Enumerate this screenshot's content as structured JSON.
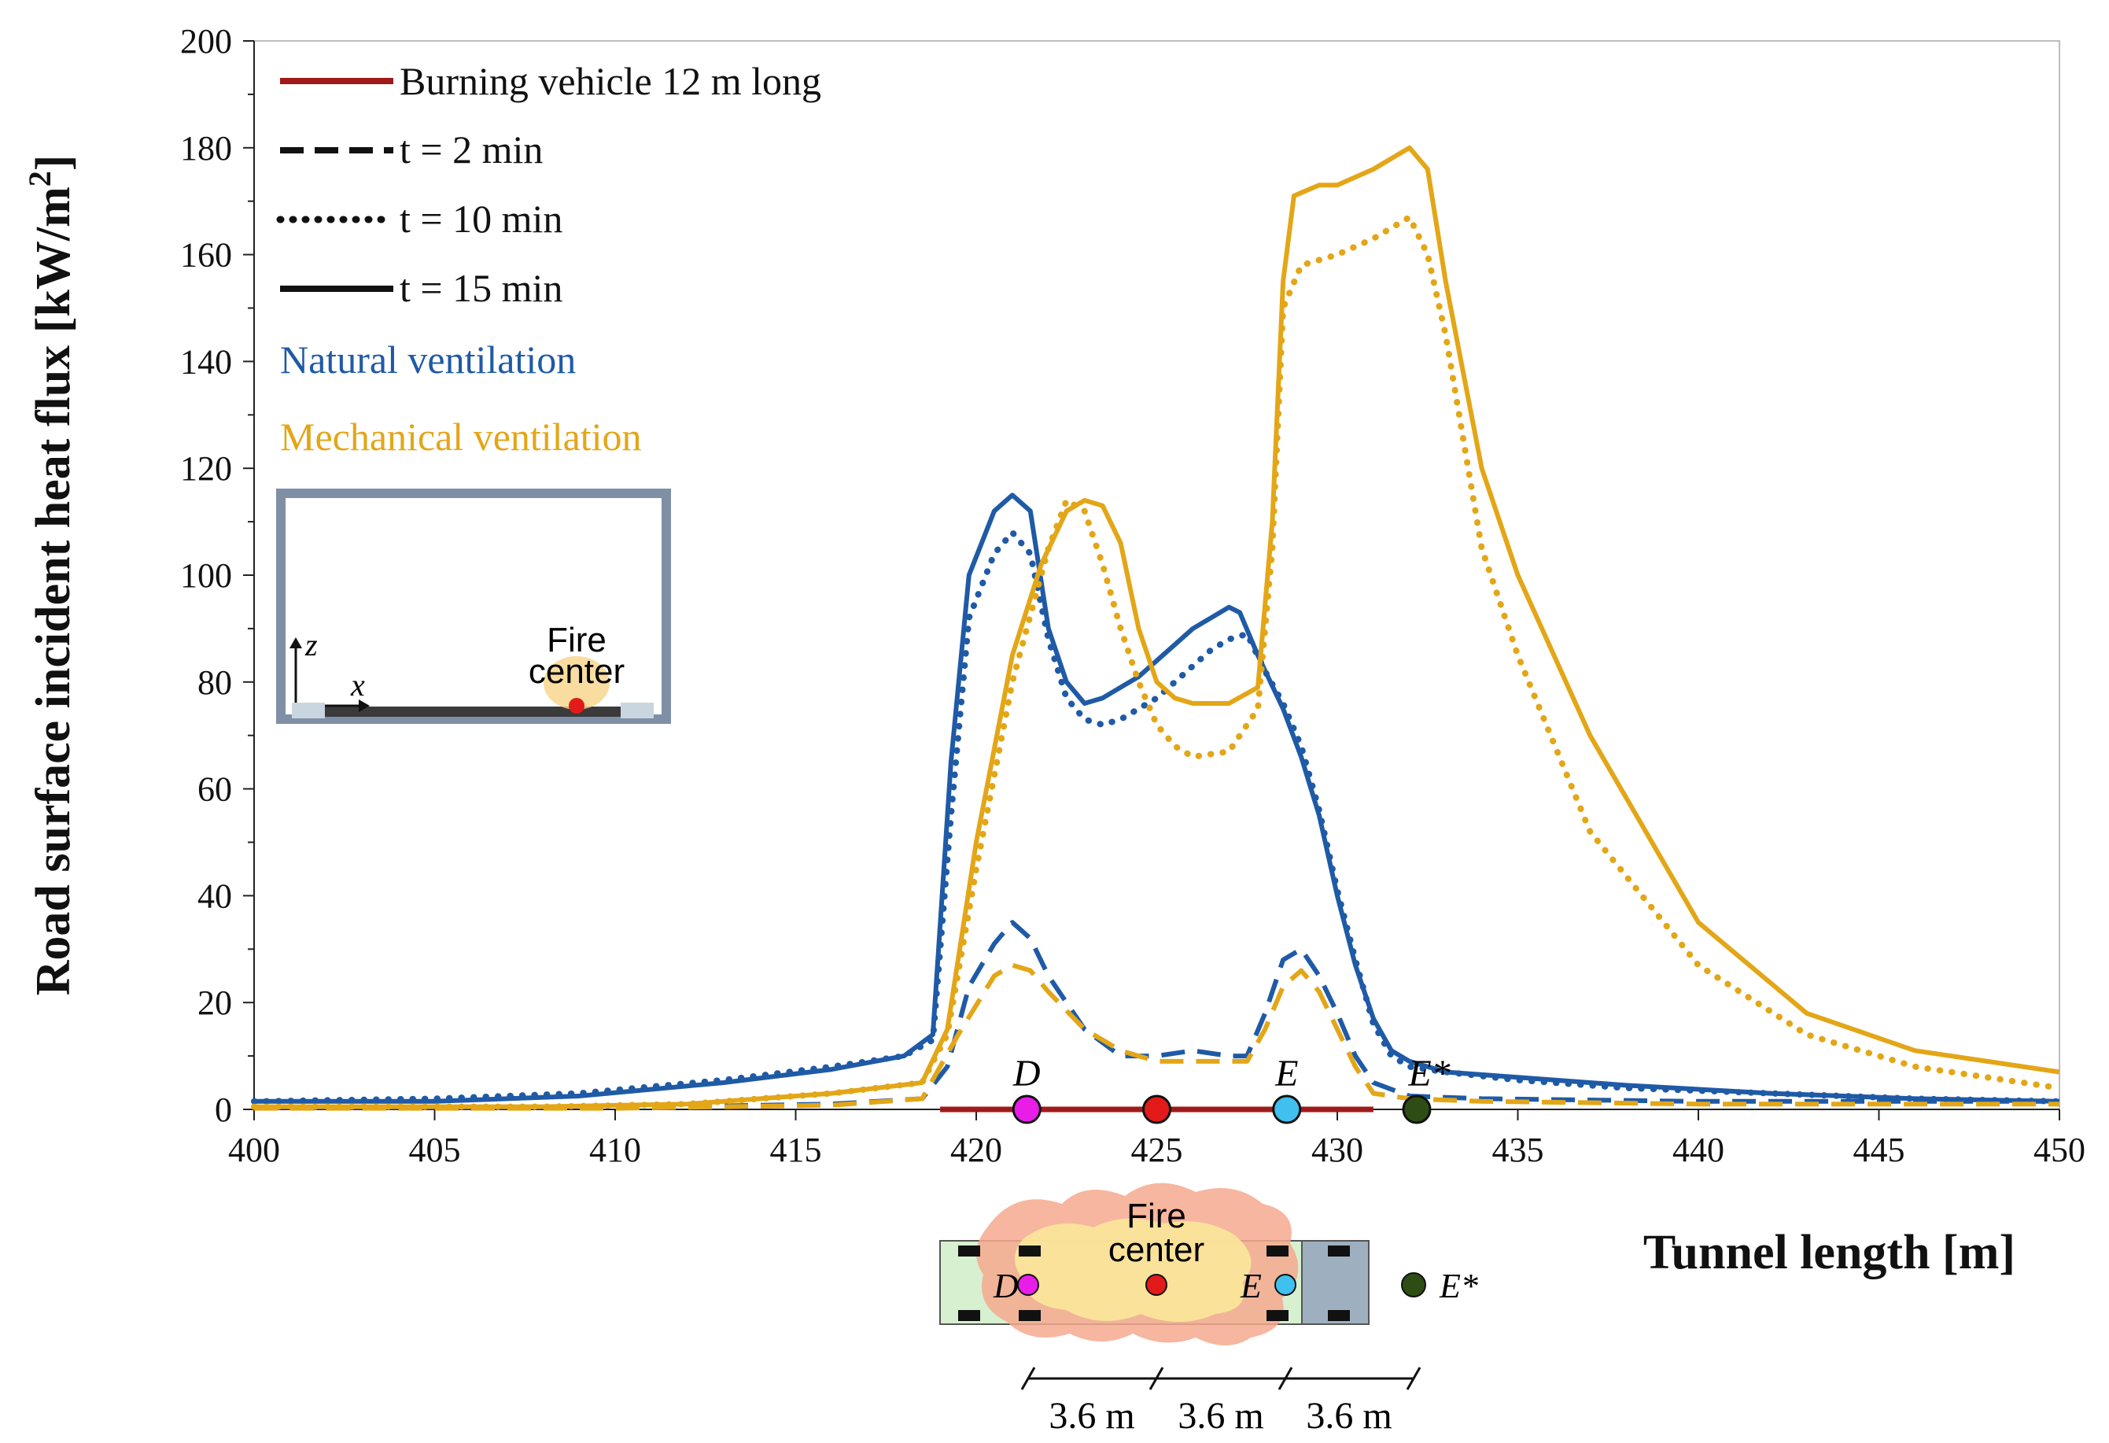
{
  "chart_data": {
    "type": "line",
    "title": "",
    "xlabel": "Tunnel length [m]",
    "ylabel": "Road surface incident heat flux [kW/m²]",
    "ylabel_main": "Road surface incident heat flux [kW/m",
    "ylabel_sup": "2",
    "ylabel_end": "]",
    "xlim": [
      400,
      450
    ],
    "ylim": [
      0,
      200
    ],
    "xticks": [
      400,
      405,
      410,
      415,
      420,
      425,
      430,
      435,
      440,
      445,
      450
    ],
    "yticks": [
      0,
      20,
      40,
      60,
      80,
      100,
      120,
      140,
      160,
      180,
      200
    ],
    "xtick_labels": [
      "400",
      "405",
      "410",
      "415",
      "420",
      "425",
      "430",
      "435",
      "440",
      "445",
      "450"
    ],
    "ytick_labels": [
      "0",
      "20",
      "40",
      "60",
      "80",
      "100",
      "120",
      "140",
      "160",
      "180",
      "200"
    ],
    "colors": {
      "natural": "#1f5aa6",
      "mechanical": "#e3a617",
      "vehicle": "#a01a1a",
      "D": "#e81ee8",
      "fire": "#e21a1a",
      "E": "#3fc0ee",
      "Estar": "#2e4d14"
    },
    "legend": {
      "vehicle": "Burning vehicle 12 m long",
      "t2": "t = 2 min",
      "t10": "t = 10 min",
      "t15": "t = 15 min",
      "natural": "Natural ventilation",
      "mechanical": "Mechanical ventilation"
    },
    "vehicle_span": [
      419,
      431
    ],
    "markers": [
      {
        "label": "D",
        "x": 421.4,
        "color_key": "D"
      },
      {
        "label": "",
        "x": 425,
        "color_key": "fire"
      },
      {
        "label": "E",
        "x": 428.6,
        "color_key": "E"
      },
      {
        "label": "E*",
        "x": 432.2,
        "color_key": "Estar"
      }
    ],
    "series": [
      {
        "name": "Natural ventilation, t = 15 min",
        "ventilation": "natural",
        "style": "solid",
        "x": [
          400,
          405,
          409,
          413,
          416,
          418,
          418.8,
          419.3,
          419.8,
          420.5,
          421,
          421.5,
          422,
          422.5,
          423,
          423.5,
          424,
          424.5,
          425,
          425.5,
          426,
          426.5,
          427,
          427.3,
          427.8,
          428.5,
          429,
          429.5,
          430,
          430.5,
          431,
          431.5,
          432,
          433,
          435,
          438,
          442,
          446,
          450
        ],
        "values": [
          1.5,
          1.5,
          2.5,
          5,
          7.5,
          10,
          14,
          65,
          100,
          112,
          115,
          112,
          90,
          80,
          76,
          77,
          79,
          81,
          84,
          87,
          90,
          92,
          94,
          93,
          85,
          75,
          66,
          55,
          40,
          27,
          17,
          11,
          9,
          7,
          6,
          4.5,
          3,
          2,
          1.5
        ]
      },
      {
        "name": "Natural ventilation, t = 10 min",
        "ventilation": "natural",
        "style": "dotted",
        "x": [
          400,
          405,
          409,
          413,
          416,
          418,
          418.8,
          419.3,
          419.8,
          420.5,
          421,
          421.5,
          422,
          422.5,
          423,
          423.5,
          424,
          424.5,
          425,
          425.5,
          426,
          426.5,
          427,
          427.5,
          428,
          428.5,
          429,
          429.5,
          430,
          430.5,
          431,
          431.5,
          432,
          433,
          435,
          438,
          442,
          446,
          450
        ],
        "values": [
          1.5,
          2,
          3,
          5.5,
          8,
          10,
          13,
          55,
          92,
          104,
          108,
          104,
          88,
          77,
          73,
          72,
          73,
          75,
          77,
          80,
          83,
          86,
          88,
          89,
          82,
          76,
          68,
          56,
          41,
          28,
          16,
          10,
          8,
          7,
          5.5,
          4,
          3,
          2,
          1.5
        ]
      },
      {
        "name": "Natural ventilation, t = 2 min",
        "ventilation": "natural",
        "style": "dashed",
        "x": [
          400,
          410,
          416,
          418.5,
          419.2,
          419.8,
          420.5,
          421,
          421.5,
          422,
          423,
          424,
          425,
          426,
          427,
          427.5,
          428,
          428.5,
          429,
          429.5,
          430,
          430.5,
          431,
          432,
          434,
          440,
          445,
          450
        ],
        "values": [
          0.3,
          0.3,
          1,
          2,
          8,
          23,
          31,
          35,
          32,
          25,
          15,
          10,
          10,
          11,
          10,
          10,
          18,
          28,
          30,
          25,
          18,
          10,
          5,
          2.5,
          2,
          1.5,
          1.5,
          1.5
        ]
      },
      {
        "name": "Mechanical ventilation, t = 15 min",
        "ventilation": "mechanical",
        "style": "solid",
        "x": [
          400,
          408,
          412,
          416,
          418.5,
          419.2,
          420,
          421,
          421.8,
          422.5,
          423,
          423.5,
          424,
          424.5,
          425,
          425.5,
          426,
          427,
          427.8,
          428.2,
          428.5,
          428.8,
          429.5,
          430,
          431,
          432,
          432.5,
          433,
          434,
          435,
          437,
          440,
          443,
          446,
          448,
          450
        ],
        "values": [
          0.5,
          0.5,
          1,
          3,
          5,
          15,
          50,
          85,
          102,
          112,
          114,
          113,
          106,
          90,
          80,
          77,
          76,
          76,
          79,
          110,
          155,
          171,
          173,
          173,
          176,
          180,
          176,
          155,
          120,
          100,
          70,
          35,
          18,
          11,
          9,
          7
        ]
      },
      {
        "name": "Mechanical ventilation, t = 10 min",
        "ventilation": "mechanical",
        "style": "dotted",
        "x": [
          400,
          408,
          412,
          416,
          418.5,
          419.2,
          420,
          421,
          422,
          422.5,
          423,
          423.5,
          424,
          424.5,
          425,
          425.5,
          426,
          427,
          427.8,
          428.2,
          428.5,
          429,
          430,
          431,
          432,
          432.5,
          433,
          434,
          435,
          437,
          440,
          443,
          446,
          448,
          450
        ],
        "values": [
          0.5,
          0.5,
          1,
          3,
          5,
          14,
          45,
          80,
          105,
          114,
          112,
          102,
          90,
          80,
          72,
          68,
          66,
          67,
          75,
          105,
          150,
          158,
          160,
          163,
          167,
          160,
          145,
          105,
          85,
          52,
          27,
          14,
          8,
          6,
          4
        ]
      },
      {
        "name": "Mechanical ventilation, t = 2 min",
        "ventilation": "mechanical",
        "style": "dashed",
        "x": [
          400,
          410,
          416,
          418.5,
          419.5,
          420.5,
          421,
          421.5,
          422,
          423,
          424,
          425,
          426,
          427,
          427.5,
          428,
          428.5,
          429,
          429.5,
          430,
          430.5,
          431,
          432,
          434,
          440,
          445,
          450
        ],
        "values": [
          0.2,
          0.2,
          0.8,
          2,
          14,
          25,
          27,
          26,
          22,
          15,
          11,
          9,
          9,
          9,
          9,
          15,
          23,
          26,
          22,
          15,
          8,
          3,
          2,
          1.5,
          1,
          1,
          1
        ]
      }
    ]
  },
  "inset_section": {
    "fire_label_line1": "Fire",
    "fire_label_line2": "center",
    "axis_z": "z",
    "axis_x": "x"
  },
  "inset_plan": {
    "fire_label_line1": "Fire",
    "fire_label_line2": "center",
    "label_D": "D",
    "label_E": "E",
    "label_Estar": "E*",
    "dims": [
      "3.6 m",
      "3.6 m",
      "3.6 m"
    ]
  }
}
